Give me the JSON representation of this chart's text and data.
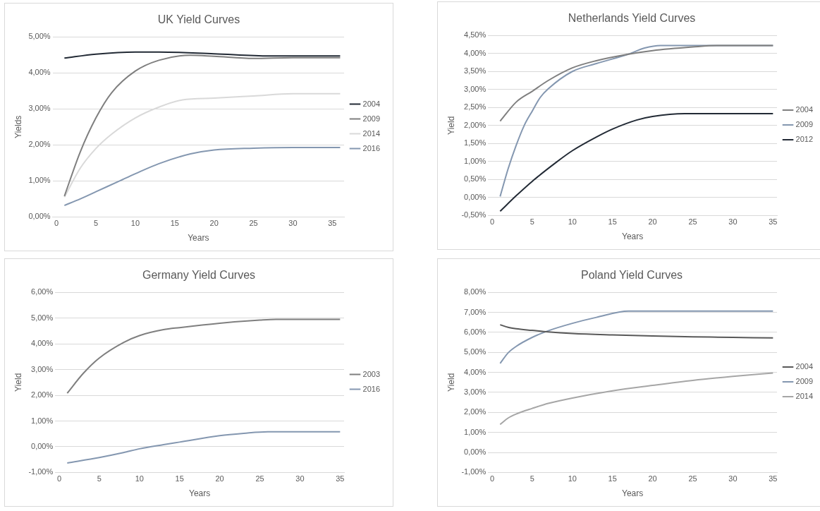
{
  "chart_data": [
    {
      "type": "line",
      "title": "UK Yield Curves",
      "xlabel": "Years",
      "ylabel": "Yields",
      "legend": "right",
      "grid": "y",
      "xlim": [
        -0.5,
        36.5
      ],
      "xticks": [
        0,
        5,
        10,
        15,
        20,
        25,
        30,
        35
      ],
      "ylim": [
        0,
        5
      ],
      "yticks": [
        {
          "value": 0,
          "label": "0,00%"
        },
        {
          "value": 1,
          "label": "1,00%"
        },
        {
          "value": 2,
          "label": "2,00%"
        },
        {
          "value": 3,
          "label": "3,00%"
        },
        {
          "value": 4,
          "label": "4,00%"
        },
        {
          "value": 5,
          "label": "5,00%"
        }
      ],
      "series": [
        {
          "name": "2004",
          "color": "#222a35",
          "x": [
            1,
            5,
            10,
            13,
            20,
            27,
            36
          ],
          "values": [
            4.41,
            4.52,
            4.58,
            4.58,
            4.53,
            4.47,
            4.47
          ]
        },
        {
          "name": "2009",
          "color": "#7f7f7f",
          "x": [
            1,
            3,
            5,
            7,
            10,
            13,
            17,
            20,
            25,
            30,
            36
          ],
          "values": [
            0.58,
            1.8,
            2.75,
            3.45,
            4.05,
            4.35,
            4.49,
            4.46,
            4.4,
            4.42,
            4.42
          ]
        },
        {
          "name": "2014",
          "color": "#d9d9d9",
          "x": [
            1,
            3,
            5,
            7,
            10,
            13,
            16,
            20,
            25,
            30,
            36
          ],
          "values": [
            0.55,
            1.35,
            1.9,
            2.3,
            2.75,
            3.05,
            3.25,
            3.3,
            3.36,
            3.42,
            3.42
          ]
        },
        {
          "name": "2016",
          "color": "#8497b0",
          "x": [
            1,
            3,
            5,
            8,
            10,
            13,
            17,
            20,
            25,
            30,
            36
          ],
          "values": [
            0.32,
            0.5,
            0.7,
            1.0,
            1.2,
            1.48,
            1.75,
            1.86,
            1.91,
            1.93,
            1.93
          ]
        }
      ]
    },
    {
      "type": "line",
      "title": "Netherlands Yield Curves",
      "xlabel": "Years",
      "ylabel": "Yield",
      "legend": "right",
      "grid": "y",
      "xlim": [
        -0.5,
        35.5
      ],
      "xticks": [
        0,
        5,
        10,
        15,
        20,
        25,
        30,
        35
      ],
      "ylim": [
        -0.5,
        4.5
      ],
      "yticks": [
        {
          "value": -0.5,
          "label": "-0,50%"
        },
        {
          "value": 0,
          "label": "0,00%"
        },
        {
          "value": 0.5,
          "label": "0,50%"
        },
        {
          "value": 1,
          "label": "1,00%"
        },
        {
          "value": 1.5,
          "label": "1,50%"
        },
        {
          "value": 2,
          "label": "2,00%"
        },
        {
          "value": 2.5,
          "label": "2,50%"
        },
        {
          "value": 3,
          "label": "3,00%"
        },
        {
          "value": 3.5,
          "label": "3,50%"
        },
        {
          "value": 4,
          "label": "4,00%"
        },
        {
          "value": 4.5,
          "label": "4,50%"
        }
      ],
      "series": [
        {
          "name": "2004",
          "color": "#7f7f7f",
          "x": [
            1,
            3,
            5,
            7,
            10,
            13,
            17,
            20,
            25,
            28,
            35
          ],
          "values": [
            2.12,
            2.65,
            2.95,
            3.25,
            3.6,
            3.8,
            3.98,
            4.08,
            4.18,
            4.22,
            4.22
          ]
        },
        {
          "name": "2009",
          "color": "#8497b0",
          "x": [
            1,
            2,
            3,
            4,
            5,
            6,
            7,
            10,
            13,
            17,
            19,
            21,
            35
          ],
          "values": [
            0.03,
            0.8,
            1.45,
            2.0,
            2.4,
            2.78,
            3.02,
            3.5,
            3.72,
            3.98,
            4.15,
            4.22,
            4.22
          ]
        },
        {
          "name": "2012",
          "color": "#222a35",
          "x": [
            1,
            3,
            5,
            8,
            10,
            13,
            15,
            18,
            20,
            24,
            35
          ],
          "values": [
            -0.38,
            0.05,
            0.45,
            0.98,
            1.3,
            1.68,
            1.9,
            2.15,
            2.25,
            2.33,
            2.33
          ]
        }
      ]
    },
    {
      "type": "line",
      "title": "Germany Yield Curves",
      "xlabel": "Years",
      "ylabel": "Yield",
      "legend": "right",
      "grid": "y",
      "xlim": [
        -0.5,
        35.5
      ],
      "xticks": [
        0,
        5,
        10,
        15,
        20,
        25,
        30,
        35
      ],
      "ylim": [
        -1,
        6
      ],
      "yticks": [
        {
          "value": -1,
          "label": "-1,00%"
        },
        {
          "value": 0,
          "label": "0,00%"
        },
        {
          "value": 1,
          "label": "1,00%"
        },
        {
          "value": 2,
          "label": "2,00%"
        },
        {
          "value": 3,
          "label": "3,00%"
        },
        {
          "value": 4,
          "label": "4,00%"
        },
        {
          "value": 5,
          "label": "5,00%"
        },
        {
          "value": 6,
          "label": "6,00%"
        }
      ],
      "series": [
        {
          "name": "2003",
          "color": "#7f7f7f",
          "x": [
            1,
            3,
            5,
            8,
            10,
            13,
            15,
            20,
            25,
            27,
            35
          ],
          "values": [
            2.08,
            2.85,
            3.45,
            4.05,
            4.32,
            4.55,
            4.63,
            4.8,
            4.92,
            4.95,
            4.95
          ]
        },
        {
          "name": "2016",
          "color": "#8497b0",
          "x": [
            1,
            5,
            8,
            10,
            13,
            15,
            20,
            23,
            26,
            35
          ],
          "values": [
            -0.63,
            -0.42,
            -0.23,
            -0.08,
            0.08,
            0.18,
            0.43,
            0.52,
            0.58,
            0.58
          ]
        }
      ]
    },
    {
      "type": "line",
      "title": "Poland Yield Curves",
      "xlabel": "Years",
      "ylabel": "Yield",
      "legend": "right",
      "grid": "y",
      "xlim": [
        -0.5,
        35.5
      ],
      "xticks": [
        0,
        5,
        10,
        15,
        20,
        25,
        30,
        35
      ],
      "ylim": [
        -1,
        8
      ],
      "yticks": [
        {
          "value": -1,
          "label": "-1,00%"
        },
        {
          "value": 0,
          "label": "0,00%"
        },
        {
          "value": 1,
          "label": "1,00%"
        },
        {
          "value": 2,
          "label": "2,00%"
        },
        {
          "value": 3,
          "label": "3,00%"
        },
        {
          "value": 4,
          "label": "4,00%"
        },
        {
          "value": 5,
          "label": "5,00%"
        },
        {
          "value": 6,
          "label": "6,00%"
        },
        {
          "value": 7,
          "label": "7,00%"
        },
        {
          "value": 8,
          "label": "8,00%"
        }
      ],
      "series": [
        {
          "name": "2004",
          "color": "#595959",
          "x": [
            1,
            2,
            3,
            5,
            7,
            10,
            15,
            20,
            25,
            30,
            35
          ],
          "values": [
            6.38,
            6.25,
            6.18,
            6.1,
            6.02,
            5.94,
            5.87,
            5.82,
            5.78,
            5.75,
            5.72
          ]
        },
        {
          "name": "2009",
          "color": "#8497b0",
          "x": [
            1,
            2,
            3,
            5,
            7,
            10,
            13,
            17,
            35
          ],
          "values": [
            4.45,
            4.98,
            5.3,
            5.75,
            6.08,
            6.45,
            6.75,
            7.06,
            7.06
          ]
        },
        {
          "name": "2014",
          "color": "#a6a6a6",
          "x": [
            1,
            2,
            3,
            5,
            7,
            10,
            15,
            20,
            25,
            30,
            35
          ],
          "values": [
            1.4,
            1.72,
            1.92,
            2.2,
            2.45,
            2.72,
            3.08,
            3.35,
            3.6,
            3.8,
            3.97
          ]
        }
      ]
    }
  ]
}
